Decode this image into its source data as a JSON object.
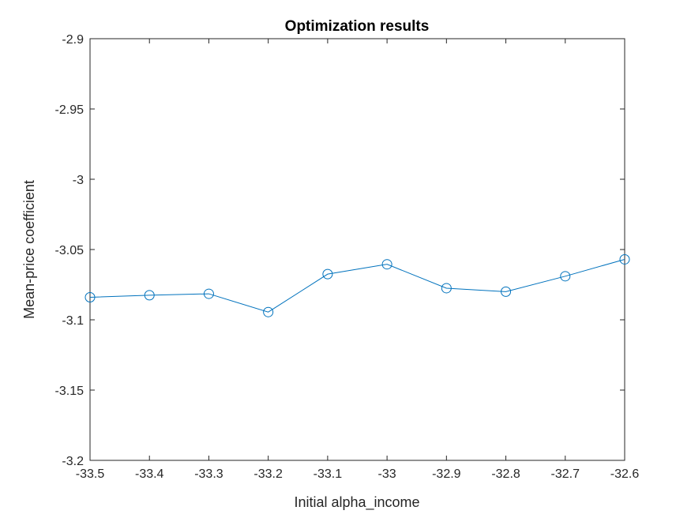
{
  "chart_data": {
    "type": "line",
    "title": "Optimization results",
    "xlabel": "Initial alpha_income",
    "ylabel": "Mean-price coefficient",
    "xlim": [
      -33.5,
      -32.6
    ],
    "ylim": [
      -3.2,
      -2.9
    ],
    "x_ticks": [
      -33.5,
      -33.4,
      -33.3,
      -33.2,
      -33.1,
      -33,
      -32.9,
      -32.8,
      -32.7,
      -32.6
    ],
    "y_ticks": [
      -2.9,
      -2.95,
      -3,
      -3.05,
      -3.1,
      -3.15,
      -3.2
    ],
    "grid": false,
    "marker": "circle",
    "series": [
      {
        "color": "#0072BD",
        "x": [
          -33.5,
          -33.4,
          -33.3,
          -33.2,
          -33.1,
          -33.0,
          -32.9,
          -32.8,
          -32.7,
          -32.6
        ],
        "y": [
          -3.084,
          -3.0825,
          -3.0815,
          -3.0945,
          -3.0675,
          -3.0605,
          -3.0775,
          -3.08,
          -3.069,
          -3.057
        ]
      }
    ]
  }
}
